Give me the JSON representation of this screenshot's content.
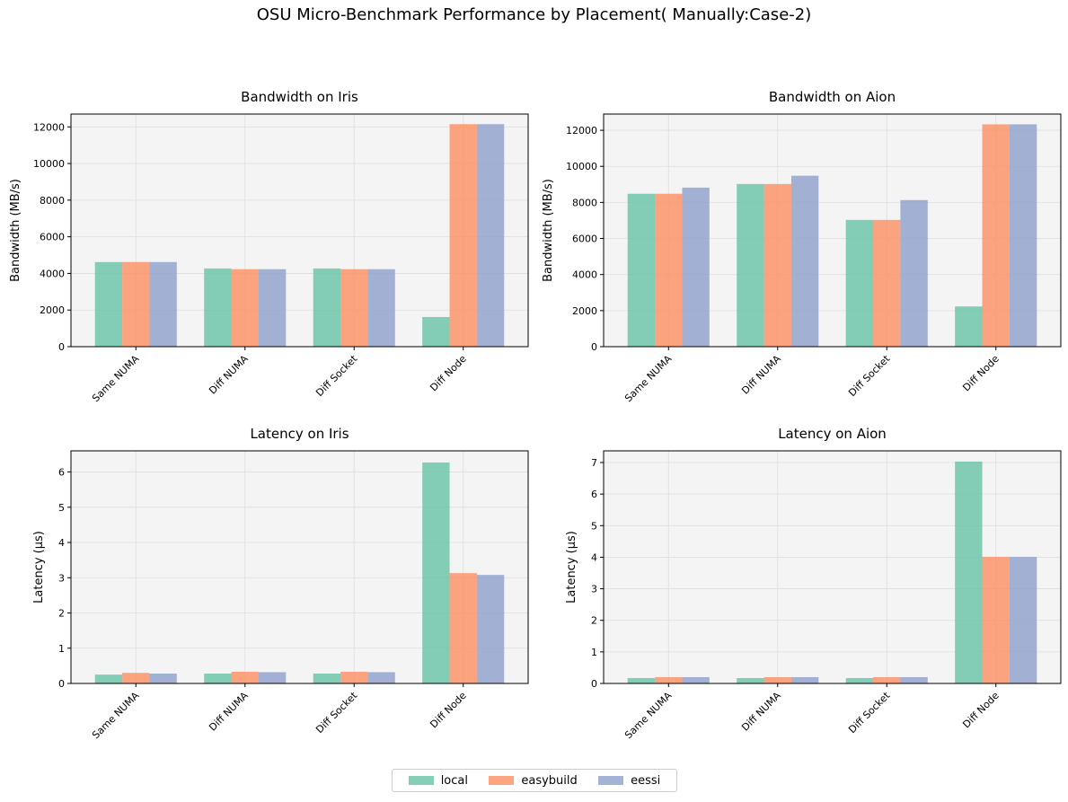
{
  "figure": {
    "title": "OSU Micro-Benchmark Performance by Placement( Manually:Case-2)"
  },
  "legend": [
    {
      "name": "local",
      "color": "#66c2a5"
    },
    {
      "name": "easybuild",
      "color": "#fc8d62"
    },
    {
      "name": "eessi",
      "color": "#8da0cb"
    }
  ],
  "chart_data": [
    {
      "type": "bar",
      "title": "Bandwidth on Iris",
      "xlabel": "",
      "ylabel": "Bandwidth (MB/s)",
      "categories": [
        "Same NUMA",
        "Diff NUMA",
        "Diff Socket",
        "Diff Node"
      ],
      "ylim": [
        0,
        12700
      ],
      "yticks": [
        0,
        2000,
        4000,
        6000,
        8000,
        10000,
        12000
      ],
      "grid": true,
      "series": [
        {
          "name": "local",
          "values": [
            4620,
            4270,
            4270,
            1620
          ]
        },
        {
          "name": "easybuild",
          "values": [
            4620,
            4230,
            4230,
            12150
          ]
        },
        {
          "name": "eessi",
          "values": [
            4620,
            4230,
            4230,
            12150
          ]
        }
      ]
    },
    {
      "type": "bar",
      "title": "Bandwidth on Aion",
      "xlabel": "",
      "ylabel": "Bandwidth (MB/s)",
      "categories": [
        "Same NUMA",
        "Diff NUMA",
        "Diff Socket",
        "Diff Node"
      ],
      "ylim": [
        0,
        12900
      ],
      "yticks": [
        0,
        2000,
        4000,
        6000,
        8000,
        10000,
        12000
      ],
      "grid": true,
      "series": [
        {
          "name": "local",
          "values": [
            8480,
            9020,
            7030,
            2230
          ]
        },
        {
          "name": "easybuild",
          "values": [
            8480,
            9020,
            7030,
            12330
          ]
        },
        {
          "name": "eessi",
          "values": [
            8820,
            9480,
            8130,
            12330
          ]
        }
      ]
    },
    {
      "type": "bar",
      "title": "Latency on Iris",
      "xlabel": "",
      "ylabel": "Latency (µs)",
      "categories": [
        "Same NUMA",
        "Diff NUMA",
        "Diff Socket",
        "Diff Node"
      ],
      "ylim": [
        0,
        6.6
      ],
      "yticks": [
        0,
        1,
        2,
        3,
        4,
        5,
        6
      ],
      "grid": true,
      "series": [
        {
          "name": "local",
          "values": [
            0.25,
            0.28,
            0.28,
            6.27
          ]
        },
        {
          "name": "easybuild",
          "values": [
            0.3,
            0.33,
            0.33,
            3.13
          ]
        },
        {
          "name": "eessi",
          "values": [
            0.28,
            0.32,
            0.32,
            3.08
          ]
        }
      ]
    },
    {
      "type": "bar",
      "title": "Latency on Aion",
      "xlabel": "",
      "ylabel": "Latency (µs)",
      "categories": [
        "Same NUMA",
        "Diff NUMA",
        "Diff Socket",
        "Diff Node"
      ],
      "ylim": [
        0,
        7.37
      ],
      "yticks": [
        0,
        1,
        2,
        3,
        4,
        5,
        6,
        7
      ],
      "grid": true,
      "series": [
        {
          "name": "local",
          "values": [
            0.17,
            0.17,
            0.17,
            7.03
          ]
        },
        {
          "name": "easybuild",
          "values": [
            0.2,
            0.2,
            0.2,
            4.01
          ]
        },
        {
          "name": "eessi",
          "values": [
            0.2,
            0.2,
            0.2,
            4.01
          ]
        }
      ]
    }
  ]
}
